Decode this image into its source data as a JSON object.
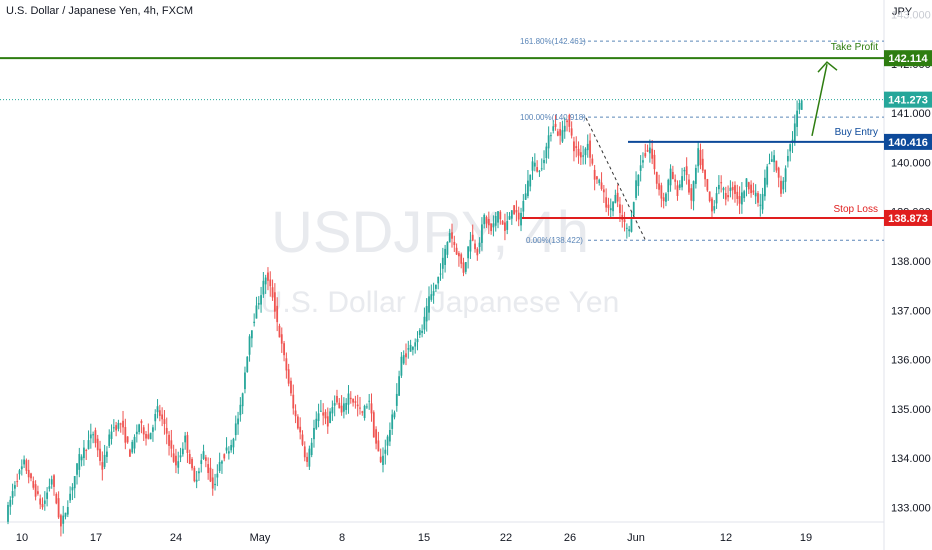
{
  "title": "U.S. Dollar / Japanese Yen, 4h, FXCM",
  "watermark": {
    "symbol": "USDJPY, 4h",
    "name": "U.S. Dollar / Japanese Yen"
  },
  "currency": "JPY",
  "colors": {
    "up": "#26a69a",
    "down": "#ef5350",
    "take_profit": "#2e7d10",
    "buy_entry": "#0d4a9a",
    "stop_loss": "#e01e1e",
    "last_price": "#26a69a",
    "fib": "#5b86b8"
  },
  "chart_data": {
    "type": "candlestick",
    "ylim": [
      132.5,
      145.0
    ],
    "y_ticks": [
      "133.000",
      "134.000",
      "135.000",
      "136.000",
      "137.000",
      "138.000",
      "139.000",
      "140.000",
      "141.000",
      "142.000",
      "143.000"
    ],
    "x_ticks": [
      "10",
      "17",
      "24",
      "May",
      "8",
      "15",
      "22",
      "26",
      "Jun",
      "12",
      "19"
    ],
    "anchors": [
      [
        0,
        132.8
      ],
      [
        4,
        133.5
      ],
      [
        8,
        133.9
      ],
      [
        12,
        133.4
      ],
      [
        16,
        133.0
      ],
      [
        20,
        133.6
      ],
      [
        24,
        132.6
      ],
      [
        27,
        133.1
      ],
      [
        32,
        134.0
      ],
      [
        38,
        134.5
      ],
      [
        42,
        133.8
      ],
      [
        46,
        134.6
      ],
      [
        50,
        134.7
      ],
      [
        54,
        134.1
      ],
      [
        58,
        134.7
      ],
      [
        62,
        134.4
      ],
      [
        66,
        135.0
      ],
      [
        70,
        134.5
      ],
      [
        74,
        133.8
      ],
      [
        78,
        134.4
      ],
      [
        82,
        133.5
      ],
      [
        86,
        134.1
      ],
      [
        90,
        133.4
      ],
      [
        94,
        134.0
      ],
      [
        98,
        134.3
      ],
      [
        102,
        135.0
      ],
      [
        106,
        136.5
      ],
      [
        110,
        137.2
      ],
      [
        113,
        137.7
      ],
      [
        116,
        137.3
      ],
      [
        119,
        136.5
      ],
      [
        122,
        135.8
      ],
      [
        125,
        135.0
      ],
      [
        128,
        134.5
      ],
      [
        131,
        133.9
      ],
      [
        134,
        134.6
      ],
      [
        137,
        135.0
      ],
      [
        140,
        134.7
      ],
      [
        143,
        135.2
      ],
      [
        146,
        134.9
      ],
      [
        149,
        135.3
      ],
      [
        152,
        135.1
      ],
      [
        155,
        134.9
      ],
      [
        158,
        135.2
      ],
      [
        160,
        134.5
      ],
      [
        163,
        133.9
      ],
      [
        166,
        134.4
      ],
      [
        169,
        135.0
      ],
      [
        172,
        136.0
      ],
      [
        175,
        136.2
      ],
      [
        178,
        136.4
      ],
      [
        181,
        136.6
      ],
      [
        184,
        137.2
      ],
      [
        187,
        137.5
      ],
      [
        190,
        138.0
      ],
      [
        193,
        138.6
      ],
      [
        196,
        138.2
      ],
      [
        199,
        137.8
      ],
      [
        202,
        138.5
      ],
      [
        205,
        138.2
      ],
      [
        208,
        138.9
      ],
      [
        211,
        138.6
      ],
      [
        214,
        139.0
      ],
      [
        217,
        138.6
      ],
      [
        220,
        139.1
      ],
      [
        223,
        138.8
      ],
      [
        226,
        139.4
      ],
      [
        229,
        140.0
      ],
      [
        232,
        139.8
      ],
      [
        235,
        140.3
      ],
      [
        238,
        140.8
      ],
      [
        241,
        140.5
      ],
      [
        244,
        140.9
      ],
      [
        247,
        140.3
      ],
      [
        250,
        140.1
      ],
      [
        253,
        140.4
      ],
      [
        256,
        139.7
      ],
      [
        259,
        139.5
      ],
      [
        262,
        139.0
      ],
      [
        265,
        139.3
      ],
      [
        268,
        138.8
      ],
      [
        271,
        138.6
      ],
      [
        274,
        139.6
      ],
      [
        277,
        140.1
      ],
      [
        280,
        140.3
      ],
      [
        283,
        139.6
      ],
      [
        286,
        139.2
      ],
      [
        289,
        139.8
      ],
      [
        292,
        139.4
      ],
      [
        295,
        139.9
      ],
      [
        298,
        139.2
      ],
      [
        301,
        140.2
      ],
      [
        304,
        139.6
      ],
      [
        307,
        139.0
      ],
      [
        310,
        139.6
      ],
      [
        313,
        139.3
      ],
      [
        316,
        139.5
      ],
      [
        319,
        139.2
      ],
      [
        322,
        139.6
      ],
      [
        325,
        139.4
      ],
      [
        328,
        139.1
      ],
      [
        331,
        139.9
      ],
      [
        334,
        140.1
      ],
      [
        337,
        139.4
      ],
      [
        340,
        140.2
      ],
      [
        342,
        140.5
      ],
      [
        344,
        141.0
      ],
      [
        346,
        141.27
      ]
    ],
    "levels": [
      {
        "label": "Take Profit",
        "value": "142.114"
      },
      {
        "label": "Buy Entry",
        "value": "140.416"
      },
      {
        "label": "Stop Loss",
        "value": "138.873"
      }
    ],
    "last_price": "141.273",
    "fib_labels": [
      "161.80%(142.461)",
      "100.00%(140.918)",
      "0.00%(138.422)"
    ],
    "faded_tick": "143.000"
  }
}
